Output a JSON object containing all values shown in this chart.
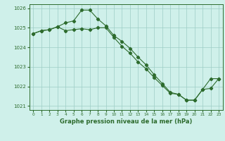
{
  "line1_x": [
    0,
    1,
    2,
    3,
    4,
    5,
    6,
    7,
    8,
    9,
    10,
    11,
    12,
    13,
    14,
    15,
    16,
    17,
    18,
    19,
    20,
    21,
    22,
    23
  ],
  "line1_y": [
    1024.7,
    1024.85,
    1024.9,
    1025.05,
    1025.25,
    1025.35,
    1025.9,
    1025.9,
    1025.45,
    1025.1,
    1024.6,
    1024.3,
    1023.95,
    1023.5,
    1023.1,
    1022.6,
    1022.15,
    1021.7,
    1021.6,
    1021.3,
    1021.3,
    1021.85,
    1022.4,
    1022.4
  ],
  "line2_x": [
    0,
    1,
    2,
    3,
    4,
    5,
    6,
    7,
    8,
    9,
    10,
    11,
    12,
    13,
    14,
    15,
    16,
    17,
    18,
    19,
    20,
    21,
    22,
    23
  ],
  "line2_y": [
    1024.7,
    1024.85,
    1024.9,
    1025.05,
    1024.85,
    1024.9,
    1024.95,
    1024.9,
    1025.0,
    1025.0,
    1024.5,
    1024.05,
    1023.7,
    1023.25,
    1022.9,
    1022.45,
    1022.05,
    1021.65,
    1021.6,
    1021.3,
    1021.3,
    1021.85,
    1021.9,
    1022.4
  ],
  "bg_color": "#cff0ea",
  "grid_color": "#9dcdc6",
  "line_color": "#2d6b2d",
  "title": "Graphe pression niveau de la mer (hPa)",
  "ylim_min": 1020.8,
  "ylim_max": 1026.2,
  "xlim_min": -0.5,
  "xlim_max": 23.5,
  "yticks": [
    1021,
    1022,
    1023,
    1024,
    1025,
    1026
  ],
  "xticks": [
    0,
    1,
    2,
    3,
    4,
    5,
    6,
    7,
    8,
    9,
    10,
    11,
    12,
    13,
    14,
    15,
    16,
    17,
    18,
    19,
    20,
    21,
    22,
    23
  ]
}
